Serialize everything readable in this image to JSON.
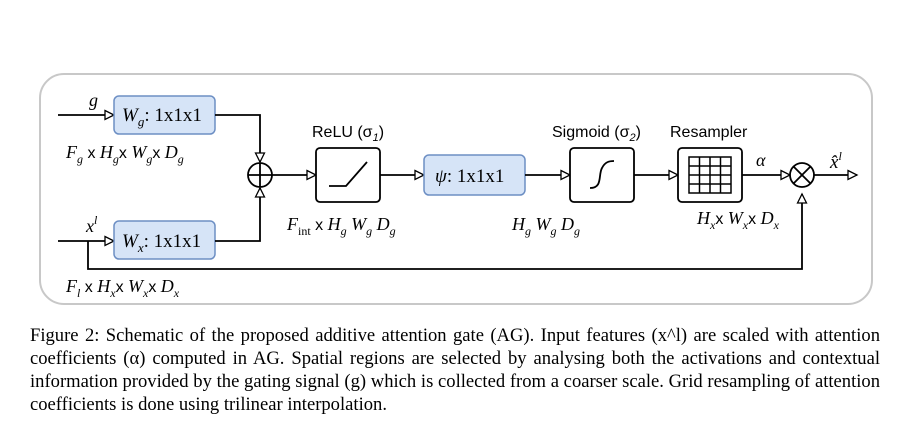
{
  "diagram": {
    "input_g": "g",
    "input_x": "x",
    "input_x_sup": "l",
    "output": "x̂",
    "output_sup": "l",
    "alpha": "α",
    "blocks": {
      "wg_label": "W",
      "wg_sub": "g",
      "wg_kernel": ": 1x1x1",
      "wx_label": "W",
      "wx_sub": "x",
      "wx_kernel": ": 1x1x1",
      "psi_label": "ψ",
      "psi_kernel": ": 1x1x1",
      "relu_title": "ReLU (σ",
      "relu_sub": "1",
      "relu_close": ")",
      "sigmoid_title": "Sigmoid (σ",
      "sigmoid_sub": "2",
      "sigmoid_close": ")",
      "resampler_title": "Resampler"
    },
    "dims": {
      "g_dims": "F_g × H_g × W_g × D_g",
      "x_dims": "F_l × H_x × W_x × D_x",
      "fint_dims": "F_int × H_g W_g D_g",
      "sigmoid_dims": "H_g W_g D_g",
      "resampler_dims": "H_x × W_x × D_x"
    }
  },
  "caption": {
    "text": "Figure 2: Schematic of the proposed additive attention gate (AG). Input features (x^l) are scaled with attention coefficients (α) computed in AG. Spatial regions are selected by analysing both the activations and contextual information provided by the gating signal (g) which is collected from a coarser scale. Grid resampling of attention coefficients is done using trilinear interpolation."
  }
}
